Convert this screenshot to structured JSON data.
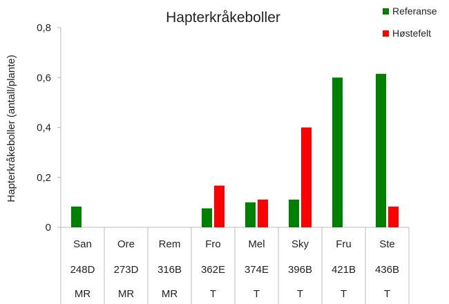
{
  "chart_data": {
    "type": "bar",
    "title": "Hapterkråkeboller",
    "xlabel": "",
    "ylabel": "Hapterkråkeboller  (antall/plante)",
    "ylim": [
      0,
      0.8
    ],
    "yticks": [
      "0",
      "0,2",
      "0,4",
      "0,6",
      "0,8"
    ],
    "ytick_values": [
      0,
      0.2,
      0.4,
      0.6,
      0.8
    ],
    "categories": [
      [
        "San",
        "248D",
        "MR"
      ],
      [
        "Ore",
        "273D",
        "MR"
      ],
      [
        "Rem",
        "316B",
        "MR"
      ],
      [
        "Fro",
        "362E",
        "T"
      ],
      [
        "Mel",
        "374E",
        "T"
      ],
      [
        "Sky",
        "396B",
        "T"
      ],
      [
        "Fru",
        "421B",
        "T"
      ],
      [
        "Ste",
        "436B",
        "T"
      ]
    ],
    "series": [
      {
        "name": "Referanse",
        "color": "#008000",
        "values": [
          0.083,
          null,
          null,
          0.076,
          0.1,
          0.111,
          0.6,
          0.615
        ]
      },
      {
        "name": "Høstefelt",
        "color": "#ff0000",
        "values": [
          null,
          null,
          null,
          0.167,
          0.111,
          0.4,
          null,
          0.083
        ]
      }
    ],
    "grid": false,
    "legend_position": "top-right"
  }
}
